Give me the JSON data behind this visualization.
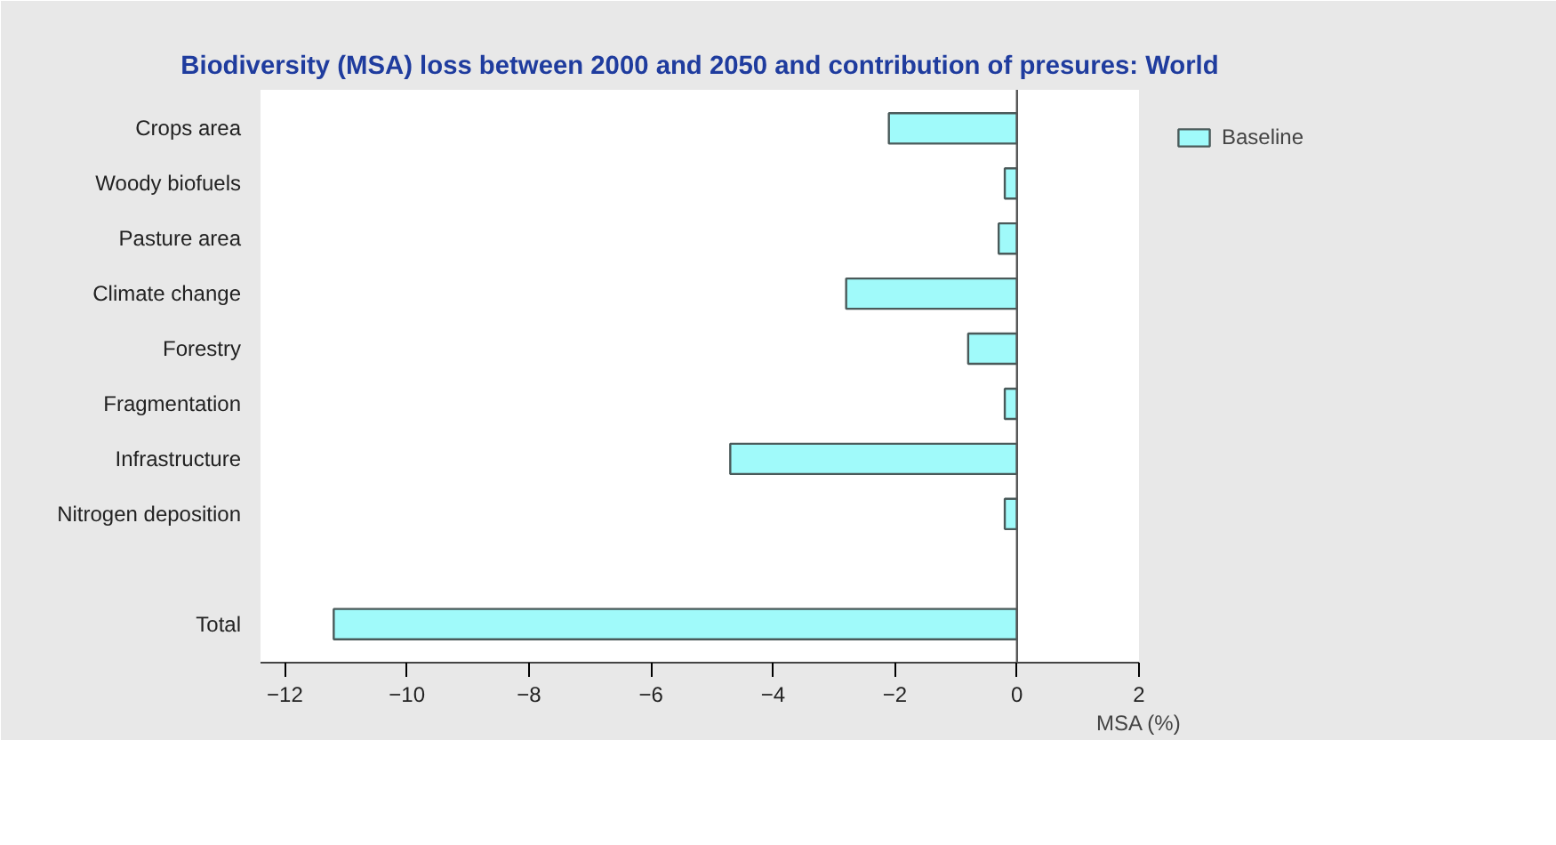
{
  "chart_data": {
    "type": "bar",
    "orientation": "horizontal",
    "title": "Biodiversity (MSA) loss between 2000 and 2050 and contribution of presures: World",
    "xlabel": "MSA (%)",
    "categories": [
      "Crops area",
      "Woody biofuels",
      "Pasture area",
      "Climate change",
      "Forestry",
      "Fragmentation",
      "Infrastructure",
      "Nitrogen deposition",
      null,
      "Total"
    ],
    "series": [
      {
        "name": "Baseline",
        "color": "#a0fafa",
        "values": [
          -2.1,
          -0.2,
          -0.3,
          -2.8,
          -0.8,
          -0.2,
          -4.7,
          -0.2,
          null,
          -11.2
        ]
      }
    ],
    "xlim": [
      -12.4,
      2
    ],
    "xticks": [
      -12,
      -10,
      -8,
      -6,
      -4,
      -2,
      0,
      2
    ],
    "ref_lines": [
      {
        "axis": "x",
        "value": 0,
        "color": "#555555"
      }
    ],
    "grid": false,
    "legend": "top right"
  }
}
